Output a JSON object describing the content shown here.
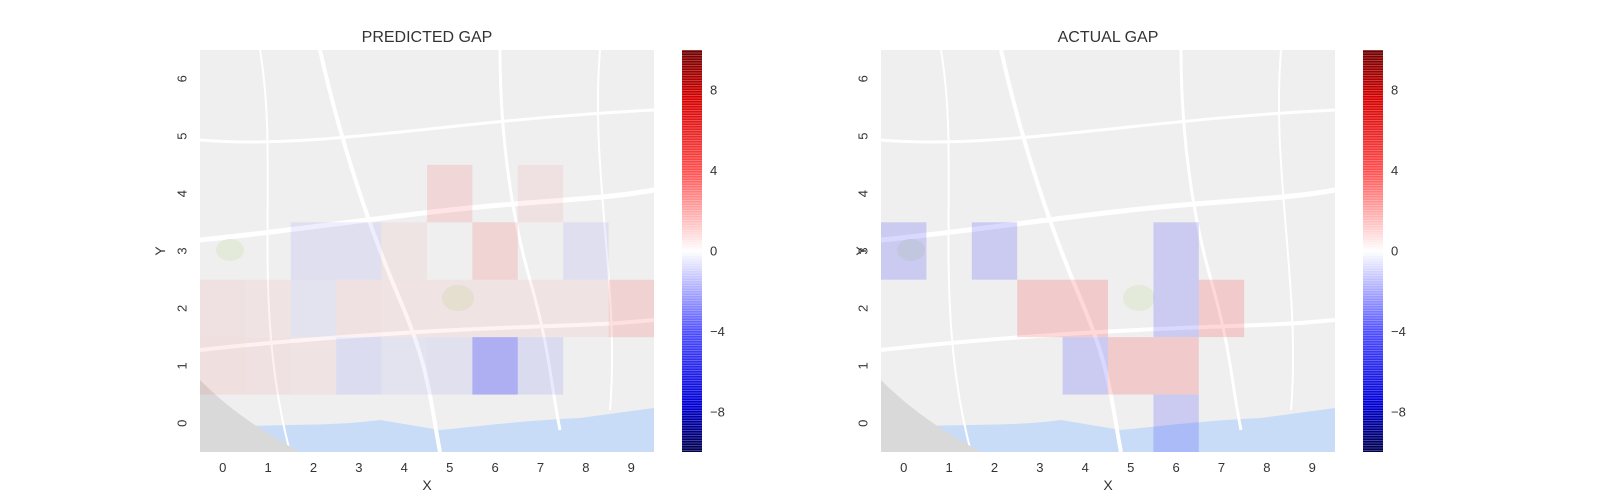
{
  "colors": {
    "positive": "#ff0000",
    "negative": "#0000ff",
    "zero": "#ffffff",
    "map_background": "#efefef",
    "water": "#c9dcf7",
    "roads": "#ffffff"
  },
  "colormap": "seismic",
  "chart_data": [
    {
      "type": "heatmap",
      "title": "PREDICTED GAP",
      "xlabel": "X",
      "ylabel": "Y",
      "x_ticks": [
        "0",
        "1",
        "2",
        "3",
        "4",
        "5",
        "6",
        "7",
        "8",
        "9"
      ],
      "y_ticks": [
        "0",
        "1",
        "2",
        "3",
        "4",
        "5",
        "6"
      ],
      "xlim": [
        -0.5,
        9.5
      ],
      "ylim": [
        -0.5,
        6.5
      ],
      "background": "street map of Porto",
      "colorbar": {
        "vmin": -10,
        "vmax": 10,
        "ticks": [
          "8",
          "4",
          "0",
          "−4",
          "−8"
        ],
        "tick_values": [
          8,
          4,
          0,
          -4,
          -8
        ]
      },
      "cells": [
        {
          "x": 0,
          "y": 1,
          "value": 0.6
        },
        {
          "x": 1,
          "y": 1,
          "value": 0.4
        },
        {
          "x": 2,
          "y": 1,
          "value": 0.3
        },
        {
          "x": 3,
          "y": 1,
          "value": -0.8
        },
        {
          "x": 4,
          "y": 1,
          "value": -0.3
        },
        {
          "x": 5,
          "y": 1,
          "value": -0.5
        },
        {
          "x": 6,
          "y": 1,
          "value": -4.0
        },
        {
          "x": 7,
          "y": 1,
          "value": -0.9
        },
        {
          "x": 0,
          "y": 2,
          "value": 0.4
        },
        {
          "x": 1,
          "y": 2,
          "value": 0.3
        },
        {
          "x": 2,
          "y": 2,
          "value": -0.3
        },
        {
          "x": 3,
          "y": 2,
          "value": 0.4
        },
        {
          "x": 4,
          "y": 2,
          "value": 0.3
        },
        {
          "x": 5,
          "y": 2,
          "value": 0.3
        },
        {
          "x": 6,
          "y": 2,
          "value": 0.3
        },
        {
          "x": 7,
          "y": 2,
          "value": 0.3
        },
        {
          "x": 8,
          "y": 2,
          "value": 0.3
        },
        {
          "x": 9,
          "y": 2,
          "value": 1.5
        },
        {
          "x": 2,
          "y": 3,
          "value": -0.6
        },
        {
          "x": 3,
          "y": 3,
          "value": -0.6
        },
        {
          "x": 4,
          "y": 3,
          "value": 0.2
        },
        {
          "x": 6,
          "y": 3,
          "value": 1.4
        },
        {
          "x": 8,
          "y": 3,
          "value": -0.6
        },
        {
          "x": 5,
          "y": 4,
          "value": 1.2
        },
        {
          "x": 7,
          "y": 4,
          "value": 0.4
        }
      ]
    },
    {
      "type": "heatmap",
      "title": "ACTUAL GAP",
      "xlabel": "X",
      "ylabel": "Y",
      "x_ticks": [
        "0",
        "1",
        "2",
        "3",
        "4",
        "5",
        "6",
        "7",
        "8",
        "9"
      ],
      "y_ticks": [
        "0",
        "1",
        "2",
        "3",
        "4",
        "5",
        "6"
      ],
      "xlim": [
        -0.5,
        9.5
      ],
      "ylim": [
        -0.5,
        6.5
      ],
      "background": "street map of Porto",
      "colorbar": {
        "vmin": -10,
        "vmax": 10,
        "ticks": [
          "8",
          "4",
          "0",
          "−4",
          "−8"
        ],
        "tick_values": [
          8,
          4,
          0,
          -4,
          -8
        ]
      },
      "cells": [
        {
          "x": 0,
          "y": 3,
          "value": -2.0
        },
        {
          "x": 2,
          "y": 3,
          "value": -2.0
        },
        {
          "x": 6,
          "y": 3,
          "value": -2.0
        },
        {
          "x": 3,
          "y": 2,
          "value": 2.0
        },
        {
          "x": 4,
          "y": 2,
          "value": 2.0
        },
        {
          "x": 6,
          "y": 2,
          "value": -2.0
        },
        {
          "x": 7,
          "y": 2,
          "value": 2.0
        },
        {
          "x": 4,
          "y": 1,
          "value": -2.0
        },
        {
          "x": 5,
          "y": 1,
          "value": 2.0
        },
        {
          "x": 6,
          "y": 1,
          "value": 2.0
        },
        {
          "x": 6,
          "y": 0,
          "value": -2.0
        }
      ]
    }
  ]
}
